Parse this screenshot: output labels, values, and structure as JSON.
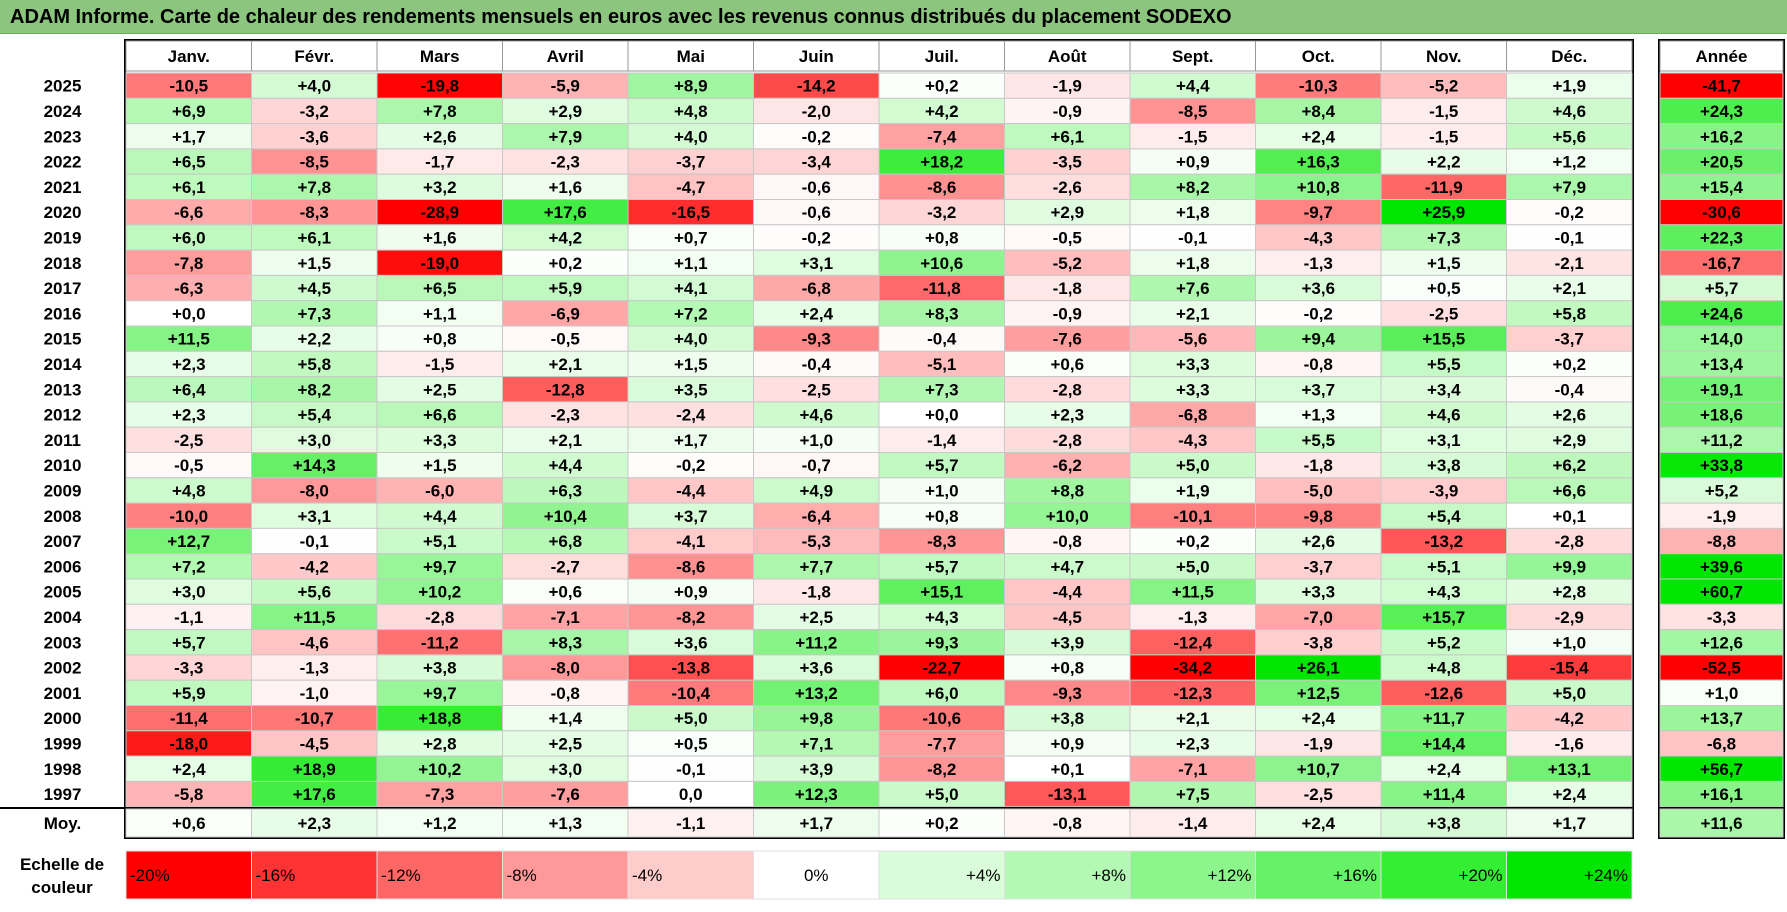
{
  "title": "ADAM Informe. Carte de chaleur des rendements mensuels en euros avec les revenus connus distribués du placement SODEXO",
  "chart_data": {
    "type": "heatmap",
    "title": "ADAM Informe. Carte de chaleur des rendements mensuels en euros avec les revenus connus distribués du placement SODEXO",
    "columns": [
      "Janv.",
      "Févr.",
      "Mars",
      "Avril",
      "Mai",
      "Juin",
      "Juil.",
      "Août",
      "Sept.",
      "Oct.",
      "Nov.",
      "Déc."
    ],
    "year_column_label": "Année",
    "rows": [
      {
        "year": "2025",
        "values": [
          "-10,5",
          "+4,0",
          "-19,8",
          "-5,9",
          "+8,9",
          "-14,2",
          "+0,2",
          "-1,9",
          "+4,4",
          "-10,3",
          "-5,2",
          "+1,9"
        ],
        "annual": "-41,7"
      },
      {
        "year": "2024",
        "values": [
          "+6,9",
          "-3,2",
          "+7,8",
          "+2,9",
          "+4,8",
          "-2,0",
          "+4,2",
          "-0,9",
          "-8,5",
          "+8,4",
          "-1,5",
          "+4,6"
        ],
        "annual": "+24,3"
      },
      {
        "year": "2023",
        "values": [
          "+1,7",
          "-3,6",
          "+2,6",
          "+7,9",
          "+4,0",
          "-0,2",
          "-7,4",
          "+6,1",
          "-1,5",
          "+2,4",
          "-1,5",
          "+5,6"
        ],
        "annual": "+16,2"
      },
      {
        "year": "2022",
        "values": [
          "+6,5",
          "-8,5",
          "-1,7",
          "-2,3",
          "-3,7",
          "-3,4",
          "+18,2",
          "-3,5",
          "+0,9",
          "+16,3",
          "+2,2",
          "+1,2"
        ],
        "annual": "+20,5"
      },
      {
        "year": "2021",
        "values": [
          "+6,1",
          "+7,8",
          "+3,2",
          "+1,6",
          "-4,7",
          "-0,6",
          "-8,6",
          "-2,6",
          "+8,2",
          "+10,8",
          "-11,9",
          "+7,9"
        ],
        "annual": "+15,4"
      },
      {
        "year": "2020",
        "values": [
          "-6,6",
          "-8,3",
          "-28,9",
          "+17,6",
          "-16,5",
          "-0,6",
          "-3,2",
          "+2,9",
          "+1,8",
          "-9,7",
          "+25,9",
          "-0,2"
        ],
        "annual": "-30,6"
      },
      {
        "year": "2019",
        "values": [
          "+6,0",
          "+6,1",
          "+1,6",
          "+4,2",
          "+0,7",
          "-0,2",
          "+0,8",
          "-0,5",
          "-0,1",
          "-4,3",
          "+7,3",
          "-0,1"
        ],
        "annual": "+22,3"
      },
      {
        "year": "2018",
        "values": [
          "-7,8",
          "+1,5",
          "-19,0",
          "+0,2",
          "+1,1",
          "+3,1",
          "+10,6",
          "-5,2",
          "+1,8",
          "-1,3",
          "+1,5",
          "-2,1"
        ],
        "annual": "-16,7"
      },
      {
        "year": "2017",
        "values": [
          "-6,3",
          "+4,5",
          "+6,5",
          "+5,9",
          "+4,1",
          "-6,8",
          "-11,8",
          "-1,8",
          "+7,6",
          "+3,6",
          "+0,5",
          "+2,1"
        ],
        "annual": "+5,7"
      },
      {
        "year": "2016",
        "values": [
          "+0,0",
          "+7,3",
          "+1,1",
          "-6,9",
          "+7,2",
          "+2,4",
          "+8,3",
          "-0,9",
          "+2,1",
          "-0,2",
          "-2,5",
          "+5,8"
        ],
        "annual": "+24,6"
      },
      {
        "year": "2015",
        "values": [
          "+11,5",
          "+2,2",
          "+0,8",
          "-0,5",
          "+4,0",
          "-9,3",
          "-0,4",
          "-7,6",
          "-5,6",
          "+9,4",
          "+15,5",
          "-3,7"
        ],
        "annual": "+14,0"
      },
      {
        "year": "2014",
        "values": [
          "+2,3",
          "+5,8",
          "-1,5",
          "+2,1",
          "+1,5",
          "-0,4",
          "-5,1",
          "+0,6",
          "+3,3",
          "-0,8",
          "+5,5",
          "+0,2"
        ],
        "annual": "+13,4"
      },
      {
        "year": "2013",
        "values": [
          "+6,4",
          "+8,2",
          "+2,5",
          "-12,8",
          "+3,5",
          "-2,5",
          "+7,3",
          "-2,8",
          "+3,3",
          "+3,7",
          "+3,4",
          "-0,4"
        ],
        "annual": "+19,1"
      },
      {
        "year": "2012",
        "values": [
          "+2,3",
          "+5,4",
          "+6,6",
          "-2,3",
          "-2,4",
          "+4,6",
          "+0,0",
          "+2,3",
          "-6,8",
          "+1,3",
          "+4,6",
          "+2,6"
        ],
        "annual": "+18,6"
      },
      {
        "year": "2011",
        "values": [
          "-2,5",
          "+3,0",
          "+3,3",
          "+2,1",
          "+1,7",
          "+1,0",
          "-1,4",
          "-2,8",
          "-4,3",
          "+5,5",
          "+3,1",
          "+2,9"
        ],
        "annual": "+11,2"
      },
      {
        "year": "2010",
        "values": [
          "-0,5",
          "+14,3",
          "+1,5",
          "+4,4",
          "-0,2",
          "-0,7",
          "+5,7",
          "-6,2",
          "+5,0",
          "-1,8",
          "+3,8",
          "+6,2"
        ],
        "annual": "+33,8"
      },
      {
        "year": "2009",
        "values": [
          "+4,8",
          "-8,0",
          "-6,0",
          "+6,3",
          "-4,4",
          "+4,9",
          "+1,0",
          "+8,8",
          "+1,9",
          "-5,0",
          "-3,9",
          "+6,6"
        ],
        "annual": "+5,2"
      },
      {
        "year": "2008",
        "values": [
          "-10,0",
          "+3,1",
          "+4,4",
          "+10,4",
          "+3,7",
          "-6,4",
          "+0,8",
          "+10,0",
          "-10,1",
          "-9,8",
          "+5,4",
          "+0,1"
        ],
        "annual": "-1,9"
      },
      {
        "year": "2007",
        "values": [
          "+12,7",
          "-0,1",
          "+5,1",
          "+6,8",
          "-4,1",
          "-5,3",
          "-8,3",
          "-0,8",
          "+0,2",
          "+2,6",
          "-13,2",
          "-2,8"
        ],
        "annual": "-8,8"
      },
      {
        "year": "2006",
        "values": [
          "+7,2",
          "-4,2",
          "+9,7",
          "-2,7",
          "-8,6",
          "+7,7",
          "+5,7",
          "+4,7",
          "+5,0",
          "-3,7",
          "+5,1",
          "+9,9"
        ],
        "annual": "+39,6"
      },
      {
        "year": "2005",
        "values": [
          "+3,0",
          "+5,6",
          "+10,2",
          "+0,6",
          "+0,9",
          "-1,8",
          "+15,1",
          "-4,4",
          "+11,5",
          "+3,3",
          "+4,3",
          "+2,8"
        ],
        "annual": "+60,7"
      },
      {
        "year": "2004",
        "values": [
          "-1,1",
          "+11,5",
          "-2,8",
          "-7,1",
          "-8,2",
          "+2,5",
          "+4,3",
          "-4,5",
          "-1,3",
          "-7,0",
          "+15,7",
          "-2,9"
        ],
        "annual": "-3,3"
      },
      {
        "year": "2003",
        "values": [
          "+5,7",
          "-4,6",
          "-11,2",
          "+8,3",
          "+3,6",
          "+11,2",
          "+9,3",
          "+3,9",
          "-12,4",
          "-3,8",
          "+5,2",
          "+1,0"
        ],
        "annual": "+12,6"
      },
      {
        "year": "2002",
        "values": [
          "-3,3",
          "-1,3",
          "+3,8",
          "-8,0",
          "-13,8",
          "+3,6",
          "-22,7",
          "+0,8",
          "-34,2",
          "+26,1",
          "+4,8",
          "-15,4"
        ],
        "annual": "-52,5"
      },
      {
        "year": "2001",
        "values": [
          "+5,9",
          "-1,0",
          "+9,7",
          "-0,8",
          "-10,4",
          "+13,2",
          "+6,0",
          "-9,3",
          "-12,3",
          "+12,5",
          "-12,6",
          "+5,0"
        ],
        "annual": "+1,0"
      },
      {
        "year": "2000",
        "values": [
          "-11,4",
          "-10,7",
          "+18,8",
          "+1,4",
          "+5,0",
          "+9,8",
          "-10,6",
          "+3,8",
          "+2,1",
          "+2,4",
          "+11,7",
          "-4,2"
        ],
        "annual": "+13,7"
      },
      {
        "year": "1999",
        "values": [
          "-18,0",
          "-4,5",
          "+2,8",
          "+2,5",
          "+0,5",
          "+7,1",
          "-7,7",
          "+0,9",
          "+2,3",
          "-1,9",
          "+14,4",
          "-1,6"
        ],
        "annual": "-6,8"
      },
      {
        "year": "1998",
        "values": [
          "+2,4",
          "+18,9",
          "+10,2",
          "+3,0",
          "-0,1",
          "+3,9",
          "-8,2",
          "+0,1",
          "-7,1",
          "+10,7",
          "+2,4",
          "+13,1"
        ],
        "annual": "+56,7"
      },
      {
        "year": "1997",
        "values": [
          "-5,8",
          "+17,6",
          "-7,3",
          "-7,6",
          "0,0",
          "+12,3",
          "+5,0",
          "-13,1",
          "+7,5",
          "-2,5",
          "+11,4",
          "+2,4"
        ],
        "annual": "+16,1"
      }
    ],
    "average": {
      "label": "Moy.",
      "values": [
        "+0,6",
        "+2,3",
        "+1,2",
        "+1,3",
        "-1,1",
        "+1,7",
        "+0,2",
        "-0,8",
        "-1,4",
        "+2,4",
        "+3,8",
        "+1,7"
      ],
      "annual": "+11,6"
    },
    "legend": {
      "label": "Echelle de couleur",
      "items": [
        {
          "text": "-20%",
          "color": "#FF0000"
        },
        {
          "text": "-16%",
          "color": "#FF3333"
        },
        {
          "text": "-12%",
          "color": "#FF6666"
        },
        {
          "text": "-8%",
          "color": "#FF9999"
        },
        {
          "text": "-4%",
          "color": "#FFCCCC"
        },
        {
          "text": "0%",
          "color": "#FFFFFF"
        },
        {
          "text": "+4%",
          "color": "#D9FCD9"
        },
        {
          "text": "+8%",
          "color": "#B3F9B3"
        },
        {
          "text": "+12%",
          "color": "#8CF58C"
        },
        {
          "text": "+16%",
          "color": "#66F266"
        },
        {
          "text": "+20%",
          "color": "#33EE33"
        },
        {
          "text": "+24%",
          "color": "#00E600"
        }
      ]
    }
  }
}
